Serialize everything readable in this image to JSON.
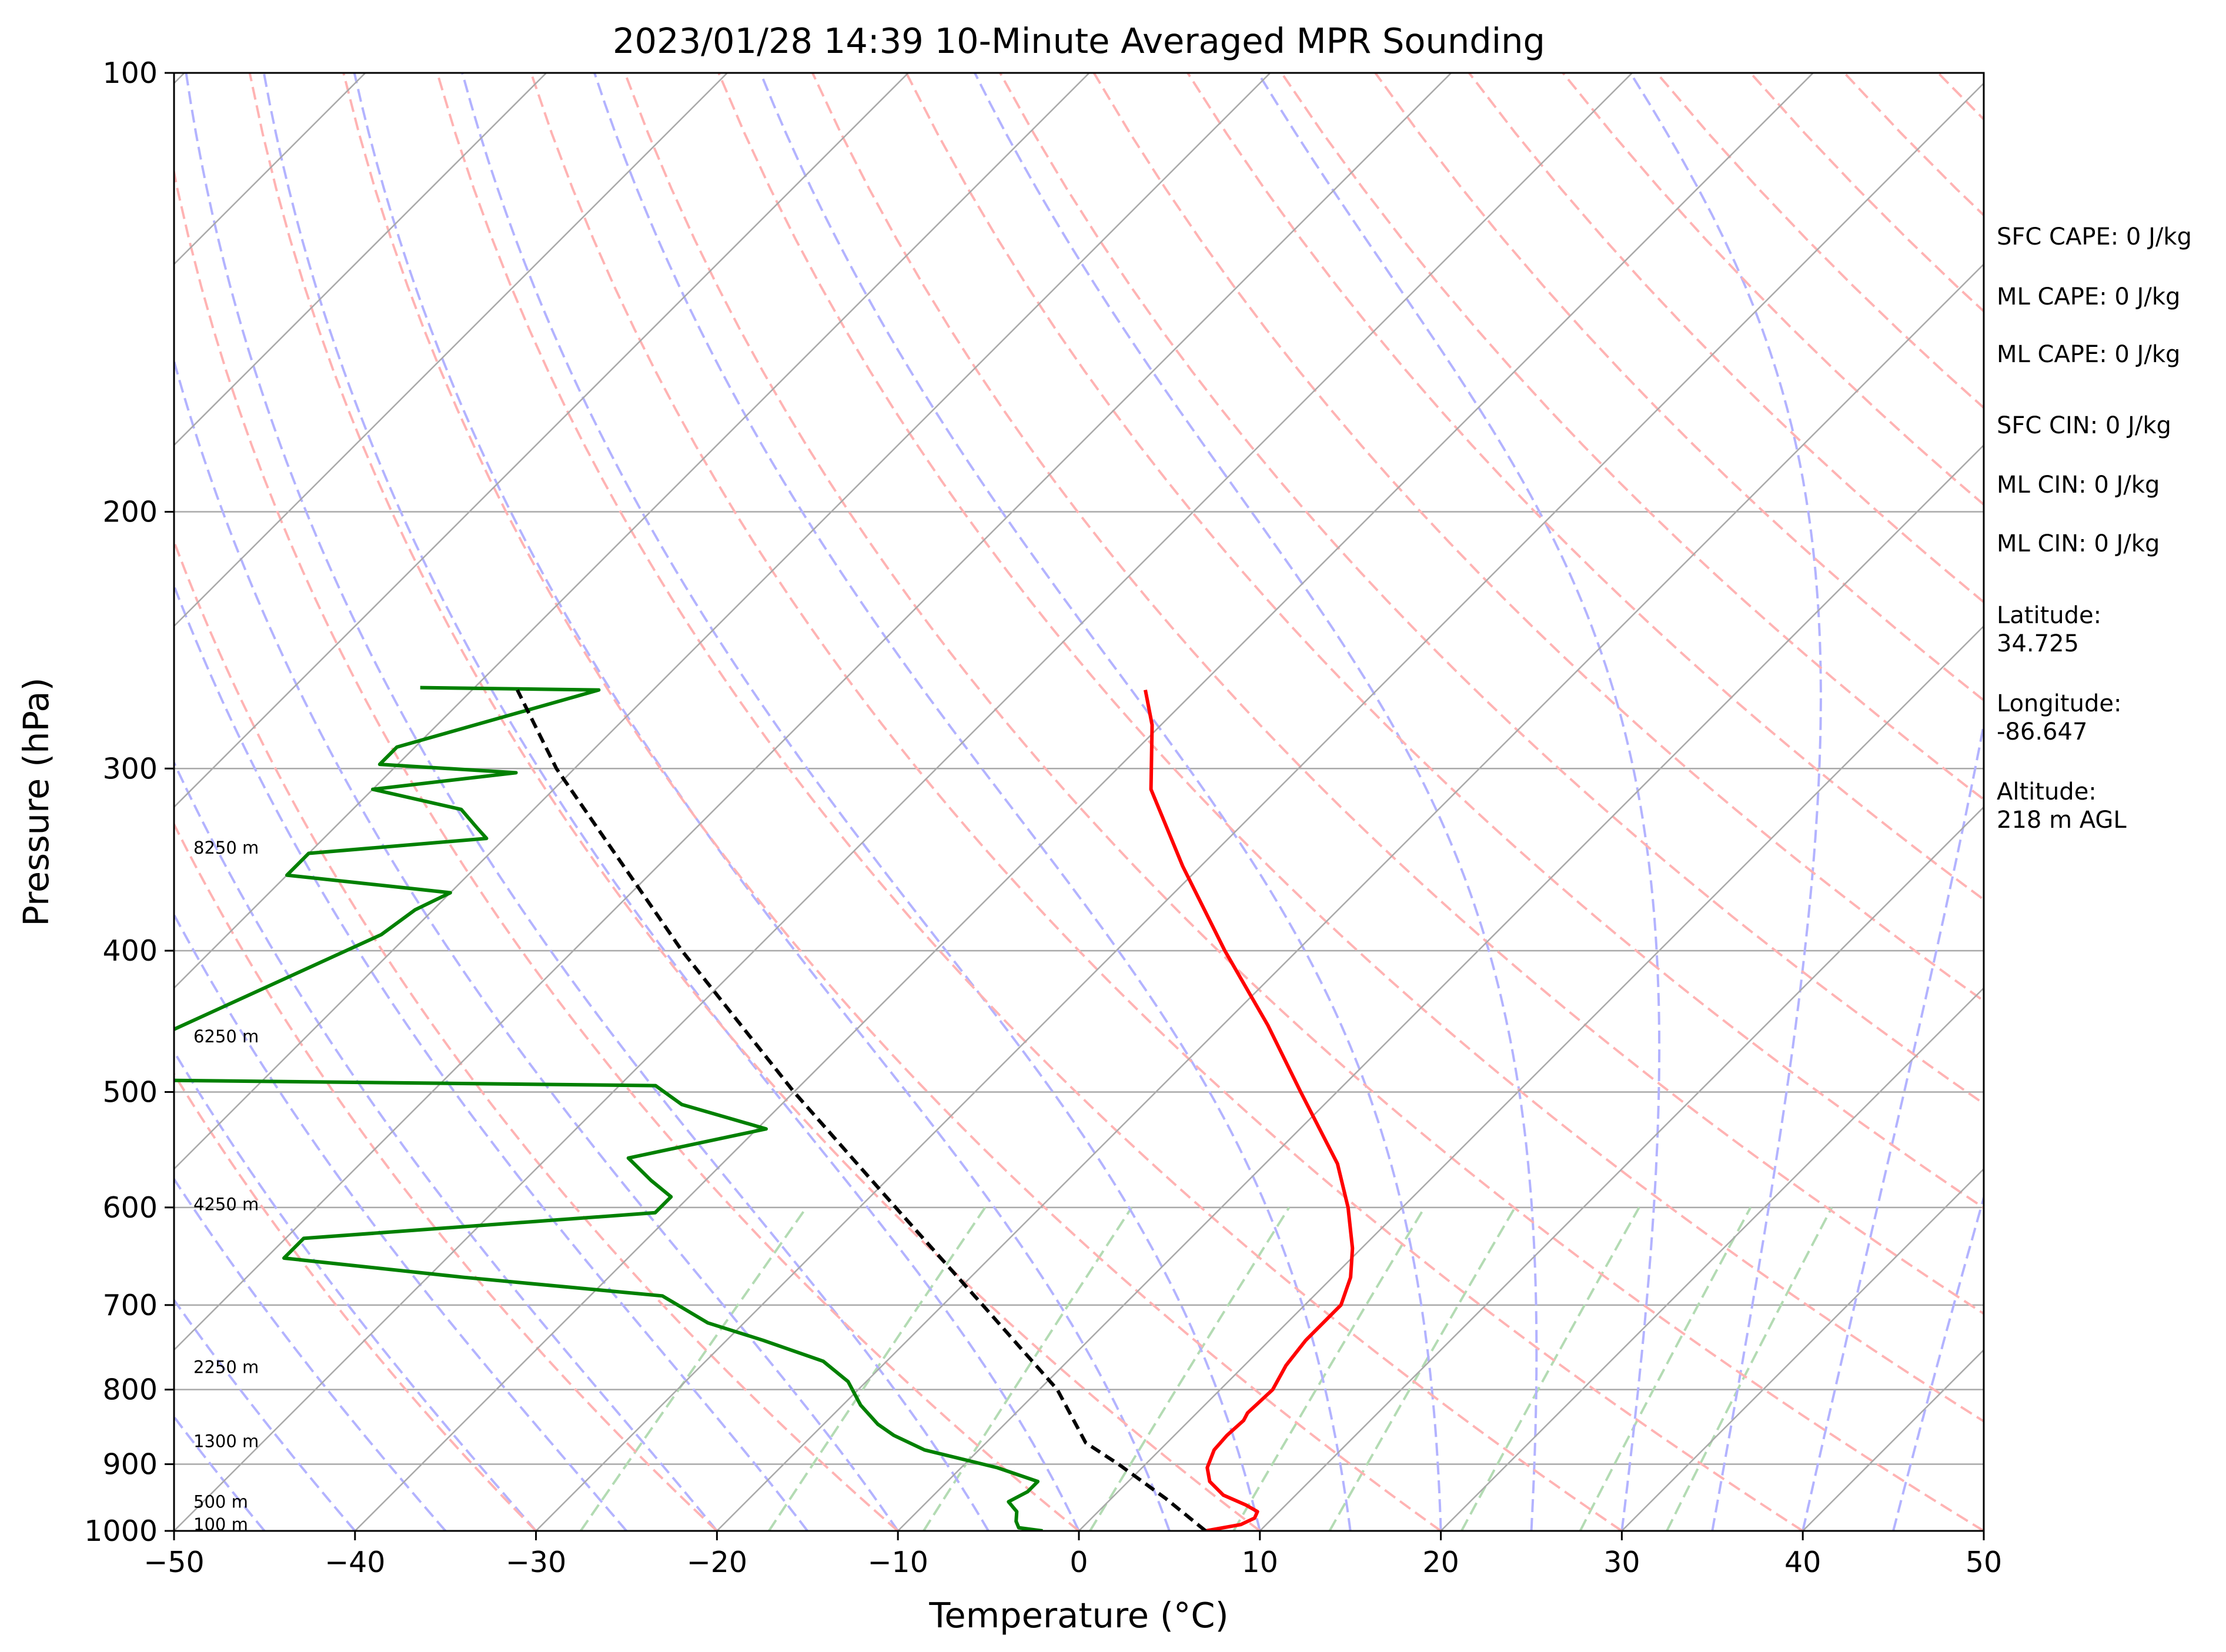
{
  "chart_data": {
    "type": "line",
    "title": "2023/01/28 14:39 10-Minute Averaged MPR Sounding",
    "xlabel": "Temperature (°C)",
    "ylabel": "Pressure (hPa)",
    "xlim": [
      -50,
      50
    ],
    "ylim": [
      1000,
      100
    ],
    "y_scale": "log",
    "skew": true,
    "x_ticks": [
      -50,
      -40,
      -30,
      -20,
      -10,
      0,
      10,
      20,
      30,
      40,
      50
    ],
    "x_tick_labels": [
      "−50",
      "−40",
      "−30",
      "−20",
      "−10",
      "0",
      "10",
      "20",
      "30",
      "40",
      "50"
    ],
    "y_ticks": [
      100,
      200,
      300,
      400,
      500,
      600,
      700,
      800,
      900,
      1000
    ],
    "y_tick_labels": [
      "100",
      "200",
      "300",
      "400",
      "500",
      "600",
      "700",
      "800",
      "900",
      "1000"
    ],
    "grid": true,
    "background_lines": {
      "isotherms_color": "#a9a9a9",
      "dry_adiabats_color": "#ffb3b3",
      "moist_adiabats_color": "#b3b3ff",
      "mixing_ratio_color": "#b3dbb3"
    },
    "series": [
      {
        "role": "temperature",
        "color": "#ff0000",
        "points": [
          [
            1000,
            7.0
          ],
          [
            990,
            8.6
          ],
          [
            980,
            9.0
          ],
          [
            970,
            8.8
          ],
          [
            960,
            7.8
          ],
          [
            945,
            6.0
          ],
          [
            925,
            4.5
          ],
          [
            905,
            3.6
          ],
          [
            880,
            3.0
          ],
          [
            860,
            2.9
          ],
          [
            840,
            3.0
          ],
          [
            830,
            2.8
          ],
          [
            800,
            2.9
          ],
          [
            770,
            2.3
          ],
          [
            740,
            2.0
          ],
          [
            700,
            2.0
          ],
          [
            670,
            1.0
          ],
          [
            640,
            -0.5
          ],
          [
            600,
            -3.0
          ],
          [
            560,
            -6.0
          ],
          [
            500,
            -12.0
          ],
          [
            450,
            -17.5
          ],
          [
            400,
            -24.0
          ],
          [
            350,
            -31.0
          ],
          [
            310,
            -37.0
          ],
          [
            280,
            -40.5
          ],
          [
            265,
            -42.8
          ]
        ]
      },
      {
        "role": "dewpoint",
        "color": "#008000",
        "points": [
          [
            1000,
            -2.0
          ],
          [
            995,
            -3.5
          ],
          [
            985,
            -4.0
          ],
          [
            970,
            -4.5
          ],
          [
            955,
            -5.5
          ],
          [
            940,
            -5.0
          ],
          [
            925,
            -5.0
          ],
          [
            905,
            -8.0
          ],
          [
            880,
            -13.0
          ],
          [
            860,
            -15.5
          ],
          [
            845,
            -17.0
          ],
          [
            820,
            -19.0
          ],
          [
            790,
            -21.0
          ],
          [
            765,
            -23.5
          ],
          [
            740,
            -28.0
          ],
          [
            720,
            -32.0
          ],
          [
            690,
            -36.0
          ],
          [
            670,
            -48.0
          ],
          [
            650,
            -59.0
          ],
          [
            630,
            -59.0
          ],
          [
            605,
            -41.0
          ],
          [
            590,
            -41.0
          ],
          [
            575,
            -43.0
          ],
          [
            555,
            -45.5
          ],
          [
            530,
            -39.5
          ],
          [
            510,
            -45.5
          ],
          [
            495,
            -48.0
          ],
          [
            490,
            -81.0
          ],
          [
            390,
            -71.5
          ],
          [
            375,
            -71.0
          ],
          [
            365,
            -70.0
          ],
          [
            355,
            -80.0
          ],
          [
            343,
            -80.0
          ],
          [
            335,
            -71.0
          ],
          [
            330,
            -72.0
          ],
          [
            320,
            -74.0
          ],
          [
            310,
            -80.0
          ],
          [
            302,
            -73.0
          ],
          [
            298,
            -81.0
          ],
          [
            290,
            -81.0
          ],
          [
            265,
            -73.0
          ],
          [
            264,
            -83.0
          ]
        ]
      },
      {
        "role": "parcel",
        "color": "#000000",
        "dashed": true,
        "points": [
          [
            1000,
            7.0
          ],
          [
            950,
            3.0
          ],
          [
            900,
            -1.5
          ],
          [
            870,
            -4.5
          ],
          [
            800,
            -9.0
          ],
          [
            700,
            -17.8
          ],
          [
            600,
            -28.0
          ],
          [
            500,
            -40.0
          ],
          [
            400,
            -54.0
          ],
          [
            300,
            -71.0
          ],
          [
            265,
            -77.5
          ]
        ]
      }
    ],
    "height_labels": [
      {
        "text": "100 m",
        "pressure": 990
      },
      {
        "text": "500 m",
        "pressure": 955
      },
      {
        "text": "1300 m",
        "pressure": 868
      },
      {
        "text": "2250 m",
        "pressure": 772
      },
      {
        "text": "4250 m",
        "pressure": 597
      },
      {
        "text": "6250 m",
        "pressure": 458
      },
      {
        "text": "8250 m",
        "pressure": 340
      }
    ]
  },
  "side_panel": {
    "lines": [
      "SFC CAPE: 0 J/kg",
      "ML CAPE: 0 J/kg",
      "ML CAPE: 0 J/kg",
      "SFC CIN: 0 J/kg",
      "ML CIN: 0 J/kg",
      "ML CIN: 0 J/kg",
      "Latitude:",
      "34.725",
      "Longitude:",
      "-86.647",
      "Altitude:",
      "218 m AGL"
    ]
  }
}
